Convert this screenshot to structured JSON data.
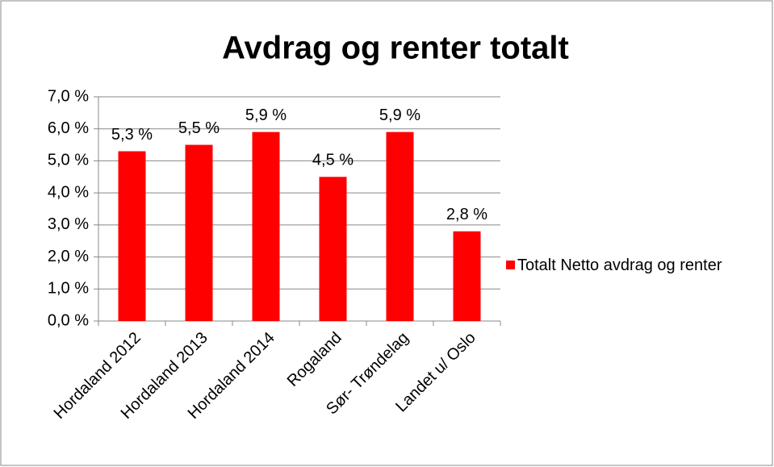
{
  "chart_data": {
    "type": "bar",
    "title": "Avdrag og renter totalt",
    "categories": [
      "Hordaland 2012",
      "Hordaland 2013",
      "Hordaland 2014",
      "Rogaland",
      "Sør- Trøndelag",
      "Landet u/ Oslo"
    ],
    "series": [
      {
        "name": "Totalt Netto avdrag og renter",
        "color": "#ff0000",
        "values": [
          5.3,
          5.5,
          5.9,
          4.5,
          5.9,
          2.8
        ],
        "value_labels": [
          "5,3 %",
          "5,5 %",
          "5,9 %",
          "4,5 %",
          "5,9 %",
          "2,8 %"
        ]
      }
    ],
    "ylim": [
      0,
      7
    ],
    "yticks": [
      {
        "value": 0,
        "label": "0,0 %"
      },
      {
        "value": 1,
        "label": "1,0 %"
      },
      {
        "value": 2,
        "label": "2,0 %"
      },
      {
        "value": 3,
        "label": "3,0 %"
      },
      {
        "value": 4,
        "label": "4,0 %"
      },
      {
        "value": 5,
        "label": "5,0 %"
      },
      {
        "value": 6,
        "label": "6,0 %"
      },
      {
        "value": 7,
        "label": "7,0 %"
      }
    ],
    "grid": true,
    "legend": "right"
  }
}
